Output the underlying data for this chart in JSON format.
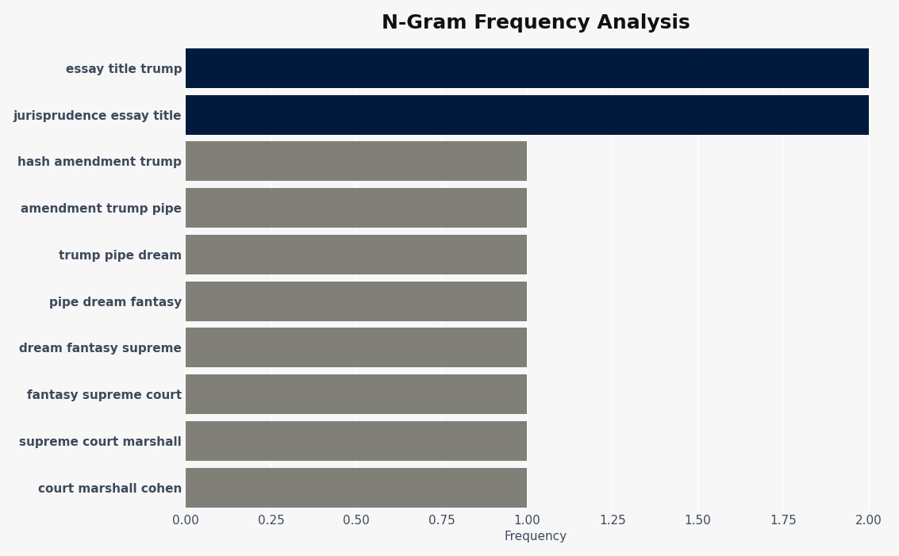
{
  "title": "N-Gram Frequency Analysis",
  "categories": [
    "court marshall cohen",
    "supreme court marshall",
    "fantasy supreme court",
    "dream fantasy supreme",
    "pipe dream fantasy",
    "trump pipe dream",
    "amendment trump pipe",
    "hash amendment trump",
    "jurisprudence essay title",
    "essay title trump"
  ],
  "values": [
    1,
    1,
    1,
    1,
    1,
    1,
    1,
    1,
    2,
    2
  ],
  "bar_colors": [
    "#808078",
    "#808078",
    "#808078",
    "#808078",
    "#808078",
    "#808078",
    "#808078",
    "#808078",
    "#001a3d",
    "#001a3d"
  ],
  "xlabel": "Frequency",
  "xlim": [
    0,
    2.05
  ],
  "xticks": [
    0.0,
    0.25,
    0.5,
    0.75,
    1.0,
    1.25,
    1.5,
    1.75,
    2.0
  ],
  "background_color": "#f7f7f7",
  "plot_background": "#f0f0f0",
  "title_fontsize": 18,
  "label_fontsize": 11,
  "tick_fontsize": 11,
  "bar_height": 0.85,
  "label_color": "#3d4a5c",
  "label_fontweight": "bold"
}
